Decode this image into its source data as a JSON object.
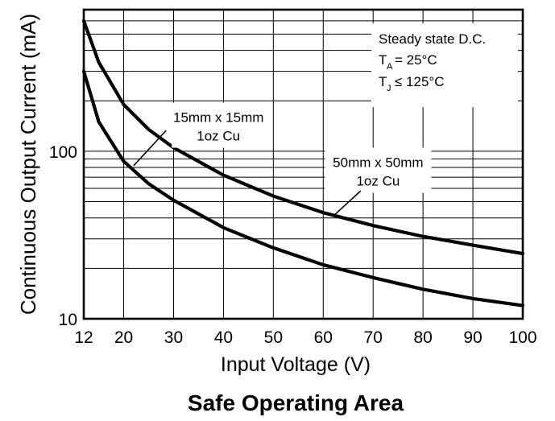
{
  "chart_data": {
    "type": "line",
    "title": "Safe Operating Area",
    "xlabel": "Input Voltage (V)",
    "ylabel": "Continuous Output Current (mA)",
    "xlim": [
      12,
      100
    ],
    "ylim": [
      10,
      700
    ],
    "yscale": "log",
    "grid": true,
    "x_ticks": [
      12,
      20,
      30,
      40,
      50,
      60,
      70,
      80,
      90,
      100
    ],
    "y_tick_labels": [
      10,
      100
    ],
    "x": [
      12,
      15,
      20,
      25,
      30,
      40,
      50,
      60,
      70,
      80,
      90,
      100
    ],
    "series": [
      {
        "name": "50mm x 50mm 1oz Cu",
        "values": [
          600,
          340,
          190,
          135,
          105,
          72,
          54,
          43,
          36,
          31,
          27.5,
          24.5
        ]
      },
      {
        "name": "15mm x 15mm 1oz Cu",
        "values": [
          300,
          150,
          87,
          64,
          51,
          35,
          26.5,
          21,
          17.6,
          15,
          13.2,
          12
        ]
      }
    ],
    "annotations": [
      {
        "label_lines": [
          "15mm x 15mm",
          "1oz Cu"
        ],
        "series": "15mm x 15mm 1oz Cu",
        "arrow_to": [
          22,
          82
        ],
        "text_at": [
          39,
          143
        ]
      },
      {
        "label_lines": [
          "50mm x 50mm",
          "1oz Cu"
        ],
        "series": "50mm x 50mm 1oz Cu",
        "arrow_to": [
          62,
          41
        ],
        "text_at": [
          71,
          77
        ]
      }
    ],
    "legend_box": {
      "line1": "Steady state D.C.",
      "line2_main": "T",
      "line2_sub": "A",
      "line2_rest": " = 25°C",
      "line3_main": "T",
      "line3_sub": "J",
      "line3_rest": " ≤ 125°C"
    }
  }
}
